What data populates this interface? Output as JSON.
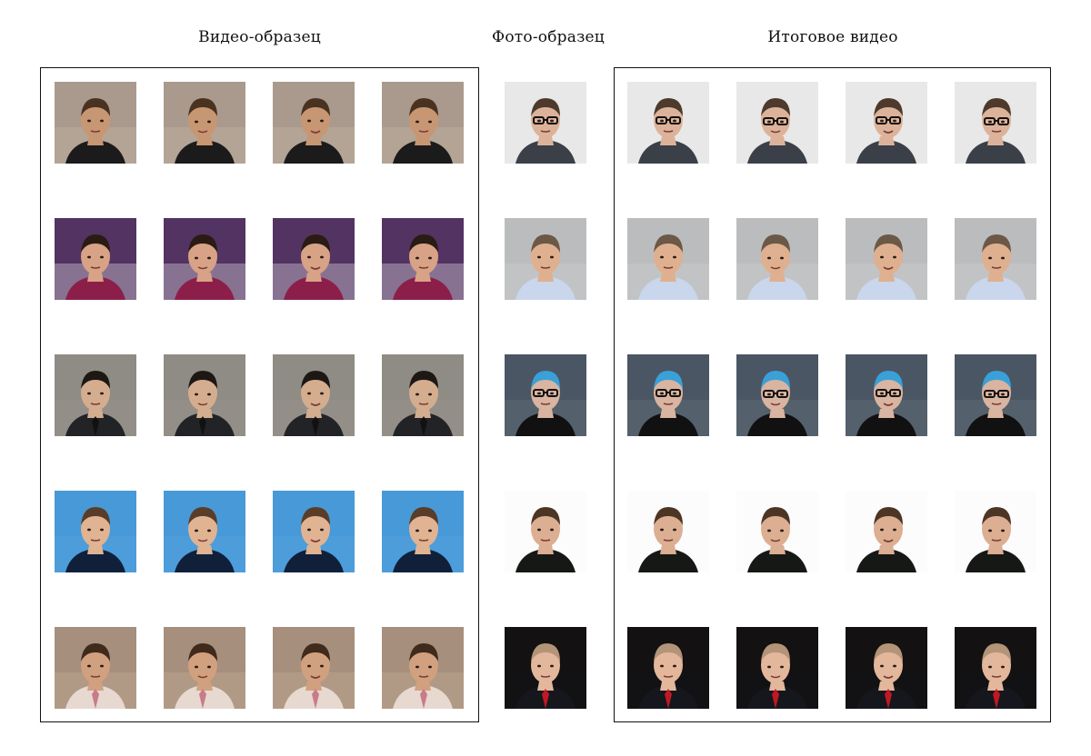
{
  "titles": {
    "video": "Видео-образец",
    "photo": "Фото-образец",
    "result": "Итоговое видео"
  },
  "rows": [
    {
      "video_bg": [
        "#b8a99c",
        "#8e7f73",
        "#c7b7a7"
      ],
      "video_skin": "#c79673",
      "video_hair": "#4a3220",
      "video_outfit": "#1b1b1b",
      "photo_bg": [
        "#f1f1f1",
        "#d6d6d6",
        "#e9e9e9"
      ],
      "photo_skin": "#dcb39a",
      "photo_hair": "#4d3a2c",
      "photo_outfit": "#3a3f48",
      "photo_glasses": true,
      "photo_tie": "",
      "video_tie": ""
    },
    {
      "video_bg": [
        "#1f3a78",
        "#b4293a",
        "#e9e9ee"
      ],
      "video_skin": "#d7a285",
      "video_hair": "#2a1b14",
      "video_outfit": "#8c1f4a",
      "photo_bg": [
        "#c5c6c8",
        "#a9aaad",
        "#d0d1d3"
      ],
      "photo_skin": "#dfb08f",
      "photo_hair": "#6b5846",
      "photo_outfit": "#c9d6ec",
      "photo_glasses": false,
      "photo_tie": "",
      "video_tie": ""
    },
    {
      "video_bg": [
        "#7d7a74",
        "#b3aea7",
        "#9a958e"
      ],
      "video_skin": "#d4ad8f",
      "video_hair": "#1d1814",
      "video_outfit": "#222326",
      "photo_bg": [
        "#52606d",
        "#3c4650",
        "#66737f"
      ],
      "photo_skin": "#d9b4a0",
      "photo_hair": "#3aa0d8",
      "photo_outfit": "#111111",
      "photo_glasses": true,
      "photo_tie": "",
      "video_tie": "#111111"
    },
    {
      "video_bg": [
        "#4d9edb",
        "#3f8fd0",
        "#5aa7df"
      ],
      "video_skin": "#e0b393",
      "video_hair": "#5a3d28",
      "video_outfit": "#10203a",
      "photo_bg": [
        "#ffffff",
        "#f5f5f5",
        "#fbfbfb"
      ],
      "photo_skin": "#dcae92",
      "photo_hair": "#4d3525",
      "photo_outfit": "#161816",
      "photo_glasses": false,
      "photo_tie": "",
      "video_tie": ""
    },
    {
      "video_bg": [
        "#b39a86",
        "#8f7a6d",
        "#c7ae94"
      ],
      "video_skin": "#d1a07e",
      "video_hair": "#3f2a1c",
      "video_outfit": "#e7d8d0",
      "photo_bg": [
        "#0a0a0c",
        "#25201c",
        "#111116"
      ],
      "photo_skin": "#e3b79c",
      "photo_hair": "#b39478",
      "photo_outfit": "#15171d",
      "photo_glasses": false,
      "photo_tie": "#c01825",
      "video_tie": "#c77c8a"
    }
  ]
}
